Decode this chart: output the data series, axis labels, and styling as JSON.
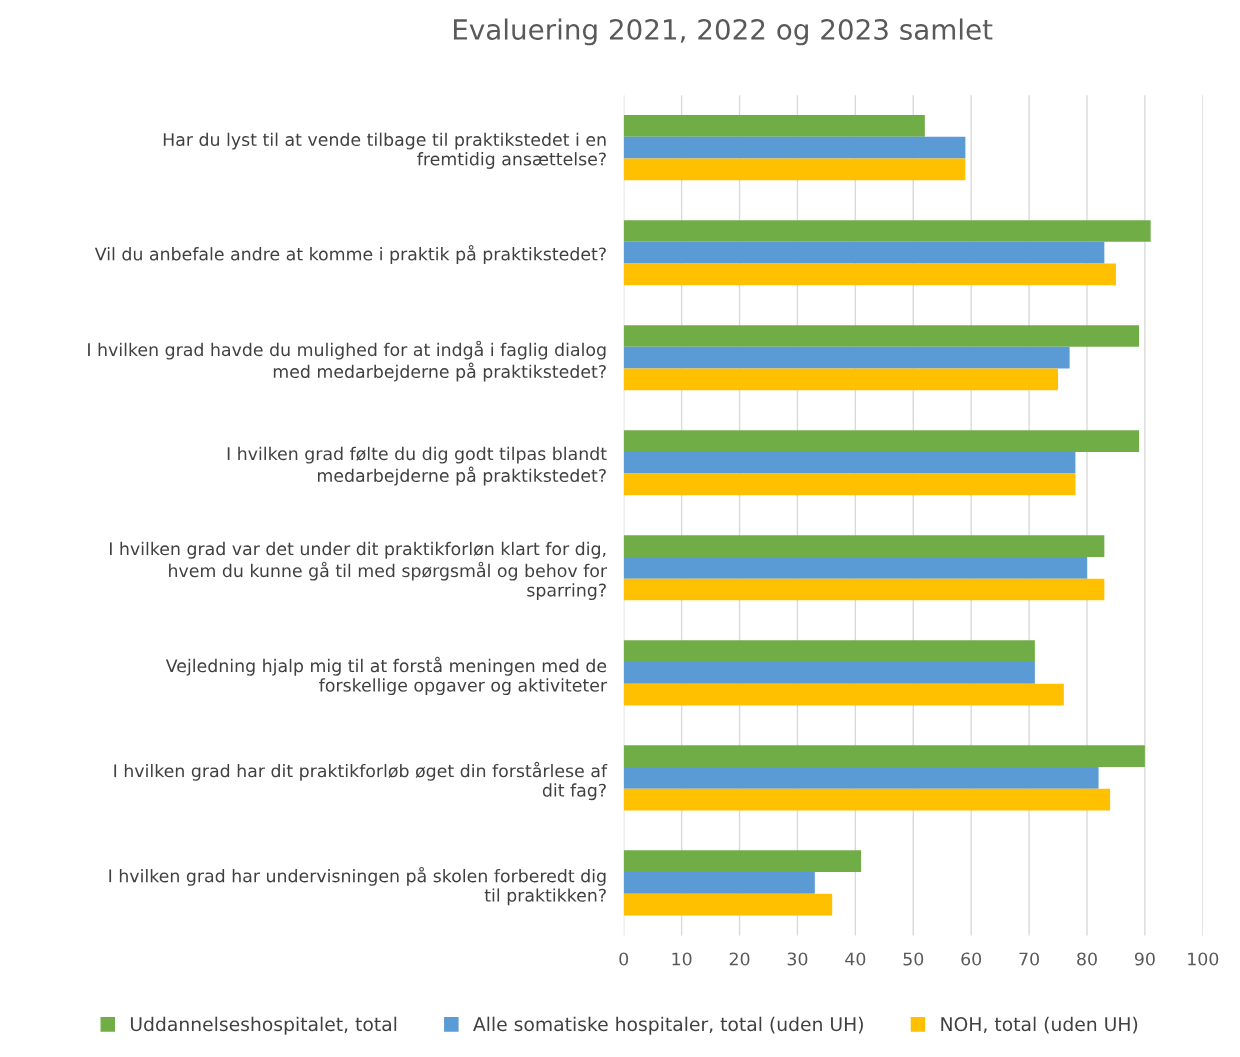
{
  "chart_data": {
    "type": "bar",
    "orientation": "horizontal",
    "title": "Evaluering 2021, 2022 og 2023 samlet",
    "categories": [
      "Har du lyst til at vende tilbage til praktikstedet i en\nfremtidig ansættelse?",
      "Vil du anbefale andre at komme i praktik på praktikstedet?",
      "I hvilken grad havde du mulighed for at indgå i faglig dialog\nmed medarbejderne på praktikstedet?",
      "I hvilken grad følte du dig godt tilpas blandt\nmedarbejderne på praktikstedet?",
      "I hvilken grad var det under dit praktikforløn klart for dig,\nhvem du kunne gå til med spørgsmål og behov for\nsparring?",
      "Vejledning hjalp mig til at forstå meningen med de\nforskellige opgaver og aktiviteter",
      "I hvilken grad har dit praktikforløb øget din forstårlese af\ndit fag?",
      "I hvilken grad har undervisningen på skolen forberedt dig\ntil praktikken?"
    ],
    "series": [
      {
        "name": "Uddannelseshospitalet, total",
        "color": "#70ad47",
        "values": [
          52,
          91,
          89,
          89,
          83,
          71,
          90,
          41
        ]
      },
      {
        "name": "Alle somatiske hospitaler, total (uden UH)",
        "color": "#5b9bd5",
        "values": [
          59,
          83,
          77,
          78,
          80,
          71,
          82,
          33
        ]
      },
      {
        "name": "NOH, total (uden UH)",
        "color": "#ffc000",
        "values": [
          59,
          85,
          75,
          78,
          83,
          76,
          84,
          36
        ]
      }
    ],
    "xlim": [
      0,
      100
    ],
    "xticks": [
      0,
      10,
      20,
      30,
      40,
      50,
      60,
      70,
      80,
      90,
      100
    ],
    "grid": "x",
    "legend": "bottom"
  }
}
